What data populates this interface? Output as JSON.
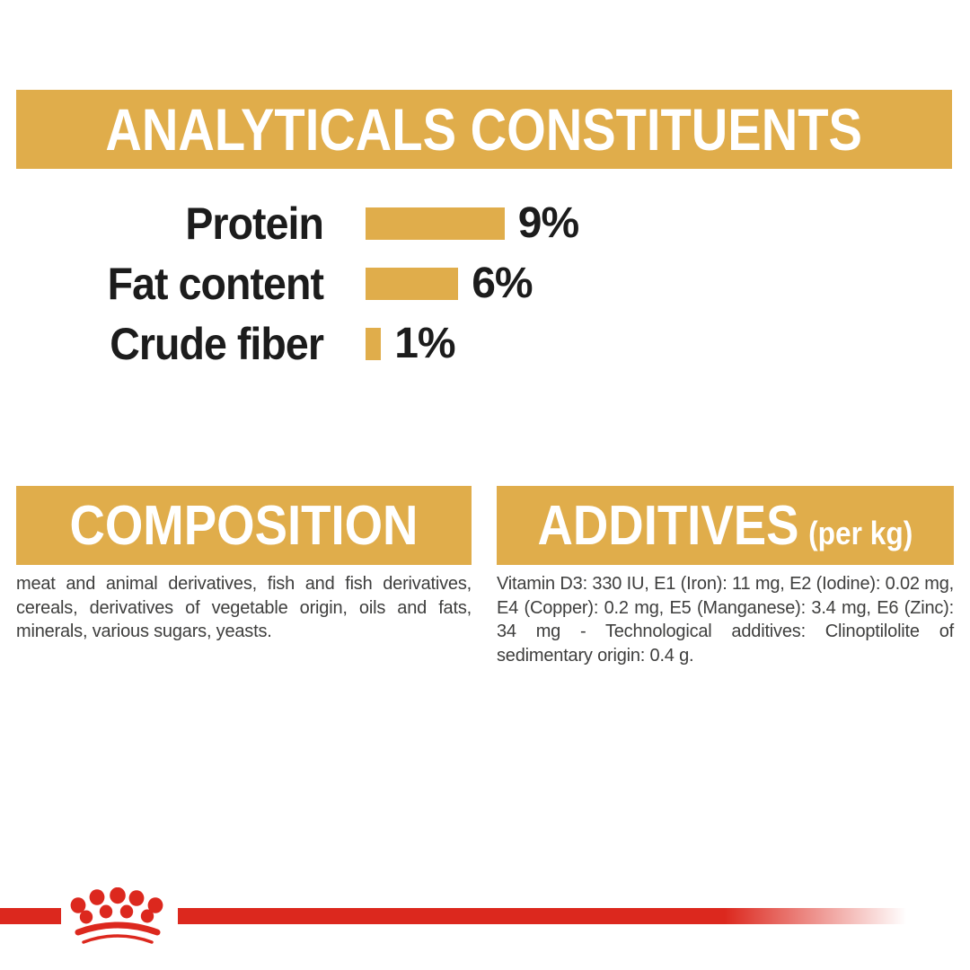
{
  "chart_data": {
    "type": "bar",
    "orientation": "horizontal",
    "title": "ANALYTICALS CONSTITUENTS",
    "categories": [
      "Protein",
      "Fat content",
      "Crude fiber"
    ],
    "values": [
      9,
      6,
      1
    ],
    "value_labels": [
      "9%",
      "6%",
      "1%"
    ],
    "unit": "%",
    "xlim": [
      0,
      10
    ],
    "bar_color": "#E0AD4B",
    "grid": false,
    "legend": false
  },
  "sections": {
    "composition": {
      "title": "COMPOSITION",
      "body": "meat and animal derivatives, fish and fish derivatives, cereals, derivatives of vegetable origin, oils and fats, minerals, various sugars, yeasts."
    },
    "additives": {
      "title": "ADDITIVES",
      "unit_note": "(per kg)",
      "body": "Vitamin D3: 330 IU, E1 (Iron): 11 mg, E2 (Iodine): 0.02 mg, E4 (Copper): 0.2 mg, E5 (Manganese): 3.4 mg, E6 (Zinc): 34 mg - Technological additives: Clinoptilolite of sedimentary origin: 0.4 g."
    }
  },
  "footer": {
    "logo": "royal-canin-crown"
  },
  "colors": {
    "gold": "#E0AD4B",
    "red": "#DC281E",
    "heading_text": "#FFFFFF",
    "label_text": "#1C1C1C",
    "body_text": "#3E3E3D"
  }
}
